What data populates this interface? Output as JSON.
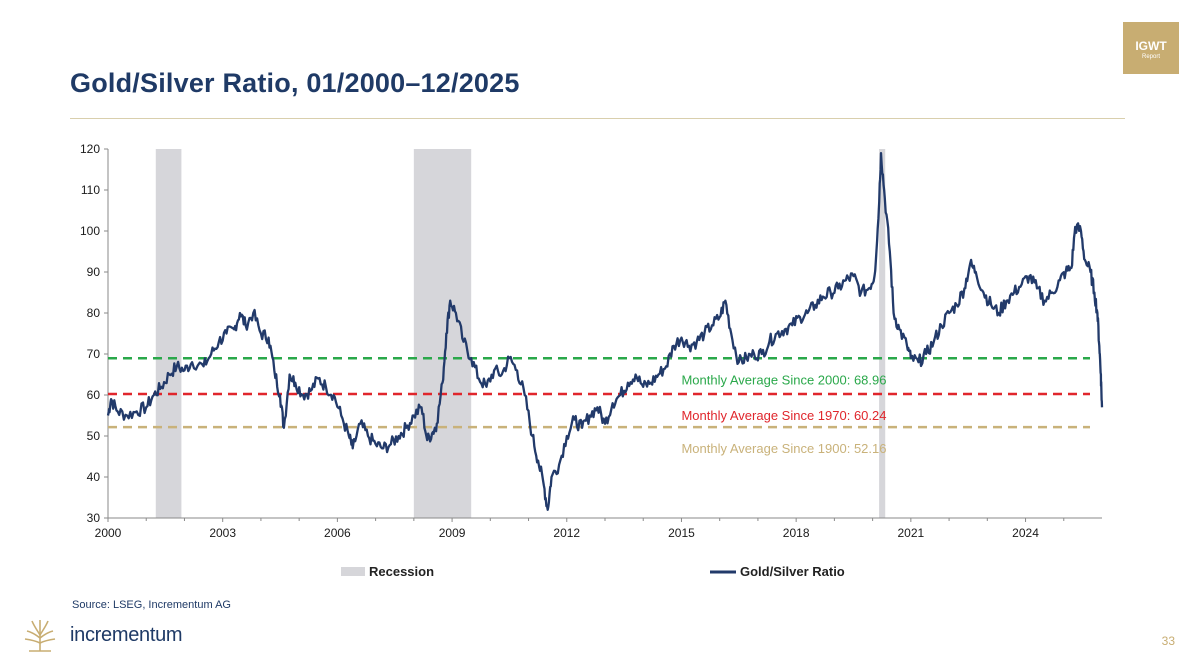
{
  "header": {
    "title": "Gold/Silver Ratio, 01/2000–12/2025",
    "badge_line1": "IGWT",
    "badge_line2": "Report",
    "accent_color": "#c8ad72",
    "title_color": "#1f3a66"
  },
  "footer": {
    "source": "Source: LSEG, Incrementum AG",
    "brand": "incrementum",
    "page_number": "33"
  },
  "chart_data": {
    "type": "line",
    "title": "Gold/Silver Ratio, 01/2000–12/2025",
    "xlabel": "",
    "ylabel": "",
    "xlim": [
      2000,
      2026
    ],
    "ylim": [
      30,
      120
    ],
    "x_ticks": [
      "2000",
      "2003",
      "2006",
      "2009",
      "2012",
      "2015",
      "2018",
      "2021",
      "2024"
    ],
    "y_ticks": [
      "30",
      "40",
      "50",
      "60",
      "70",
      "80",
      "90",
      "100",
      "110",
      "120"
    ],
    "grid": false,
    "legend_position": "bottom",
    "legend": [
      "Recession",
      "Gold/Silver Ratio"
    ],
    "series": [
      {
        "name": "Gold/Silver Ratio",
        "color": "#223a6a",
        "points": [
          [
            2000.0,
            55
          ],
          [
            2000.08,
            59
          ],
          [
            2000.25,
            56
          ],
          [
            2000.5,
            55
          ],
          [
            2000.75,
            56
          ],
          [
            2001.0,
            57
          ],
          [
            2001.2,
            60
          ],
          [
            2001.4,
            62
          ],
          [
            2001.6,
            65
          ],
          [
            2001.8,
            67
          ],
          [
            2002.0,
            66
          ],
          [
            2002.2,
            68
          ],
          [
            2002.5,
            67
          ],
          [
            2002.7,
            70
          ],
          [
            2002.9,
            73
          ],
          [
            2003.1,
            75
          ],
          [
            2003.3,
            76
          ],
          [
            2003.45,
            80
          ],
          [
            2003.6,
            77
          ],
          [
            2003.8,
            80
          ],
          [
            2004.0,
            75
          ],
          [
            2004.2,
            74
          ],
          [
            2004.35,
            66
          ],
          [
            2004.5,
            60
          ],
          [
            2004.6,
            52
          ],
          [
            2004.75,
            65
          ],
          [
            2004.9,
            63
          ],
          [
            2005.1,
            60
          ],
          [
            2005.3,
            61
          ],
          [
            2005.5,
            64
          ],
          [
            2005.7,
            62
          ],
          [
            2005.9,
            60
          ],
          [
            2006.1,
            55
          ],
          [
            2006.3,
            50
          ],
          [
            2006.4,
            47
          ],
          [
            2006.6,
            53
          ],
          [
            2006.8,
            50
          ],
          [
            2007.0,
            48
          ],
          [
            2007.2,
            47
          ],
          [
            2007.4,
            48
          ],
          [
            2007.6,
            50
          ],
          [
            2007.8,
            52
          ],
          [
            2008.0,
            55
          ],
          [
            2008.2,
            57
          ],
          [
            2008.35,
            49
          ],
          [
            2008.5,
            51
          ],
          [
            2008.6,
            53
          ],
          [
            2008.75,
            63
          ],
          [
            2008.85,
            75
          ],
          [
            2008.95,
            83
          ],
          [
            2009.1,
            80
          ],
          [
            2009.3,
            73
          ],
          [
            2009.5,
            69
          ],
          [
            2009.7,
            64
          ],
          [
            2009.9,
            62
          ],
          [
            2010.1,
            66
          ],
          [
            2010.3,
            65
          ],
          [
            2010.5,
            69
          ],
          [
            2010.7,
            66
          ],
          [
            2010.9,
            60
          ],
          [
            2011.1,
            50
          ],
          [
            2011.25,
            44
          ],
          [
            2011.4,
            38
          ],
          [
            2011.5,
            32
          ],
          [
            2011.6,
            40
          ],
          [
            2011.8,
            43
          ],
          [
            2012.0,
            50
          ],
          [
            2012.2,
            54
          ],
          [
            2012.4,
            52
          ],
          [
            2012.6,
            55
          ],
          [
            2012.8,
            57
          ],
          [
            2013.0,
            53
          ],
          [
            2013.2,
            58
          ],
          [
            2013.4,
            60
          ],
          [
            2013.6,
            63
          ],
          [
            2013.8,
            65
          ],
          [
            2014.0,
            62
          ],
          [
            2014.2,
            63
          ],
          [
            2014.4,
            65
          ],
          [
            2014.6,
            67
          ],
          [
            2014.8,
            72
          ],
          [
            2015.0,
            74
          ],
          [
            2015.2,
            72
          ],
          [
            2015.4,
            73
          ],
          [
            2015.6,
            75
          ],
          [
            2015.8,
            77
          ],
          [
            2016.0,
            79
          ],
          [
            2016.15,
            83
          ],
          [
            2016.3,
            75
          ],
          [
            2016.5,
            68
          ],
          [
            2016.7,
            69
          ],
          [
            2016.9,
            70
          ],
          [
            2017.1,
            70
          ],
          [
            2017.3,
            73
          ],
          [
            2017.5,
            75
          ],
          [
            2017.7,
            76
          ],
          [
            2017.9,
            77
          ],
          [
            2018.1,
            79
          ],
          [
            2018.3,
            80
          ],
          [
            2018.5,
            82
          ],
          [
            2018.7,
            84
          ],
          [
            2018.9,
            85
          ],
          [
            2019.1,
            86
          ],
          [
            2019.3,
            88
          ],
          [
            2019.5,
            89
          ],
          [
            2019.7,
            85
          ],
          [
            2019.9,
            86
          ],
          [
            2020.05,
            89
          ],
          [
            2020.15,
            103
          ],
          [
            2020.22,
            119
          ],
          [
            2020.32,
            108
          ],
          [
            2020.45,
            95
          ],
          [
            2020.55,
            80
          ],
          [
            2020.7,
            76
          ],
          [
            2020.9,
            72
          ],
          [
            2021.0,
            69
          ],
          [
            2021.2,
            68
          ],
          [
            2021.4,
            70
          ],
          [
            2021.6,
            73
          ],
          [
            2021.8,
            77
          ],
          [
            2022.0,
            80
          ],
          [
            2022.2,
            82
          ],
          [
            2022.4,
            86
          ],
          [
            2022.55,
            92
          ],
          [
            2022.7,
            90
          ],
          [
            2022.9,
            85
          ],
          [
            2023.1,
            82
          ],
          [
            2023.3,
            80
          ],
          [
            2023.5,
            83
          ],
          [
            2023.7,
            85
          ],
          [
            2023.9,
            87
          ],
          [
            2024.1,
            89
          ],
          [
            2024.3,
            86
          ],
          [
            2024.5,
            83
          ],
          [
            2024.7,
            85
          ],
          [
            2024.9,
            88
          ],
          [
            2025.05,
            90
          ],
          [
            2025.2,
            91
          ],
          [
            2025.3,
            101
          ],
          [
            2025.45,
            100
          ],
          [
            2025.55,
            93
          ],
          [
            2025.7,
            90
          ],
          [
            2025.8,
            85
          ],
          [
            2025.88,
            80
          ],
          [
            2025.93,
            72
          ],
          [
            2025.97,
            65
          ],
          [
            2026.0,
            57
          ]
        ]
      }
    ],
    "recessions": [
      [
        2001.25,
        2001.92
      ],
      [
        2008.0,
        2009.5
      ],
      [
        2020.17,
        2020.33
      ]
    ],
    "recession_color": "#d6d6da",
    "reference_lines": [
      {
        "label": "Monthly Average Since 2000: 68.96",
        "value": 68.96,
        "color": "#2aa84a"
      },
      {
        "label": "Monthly Average Since 1970: 60.24",
        "value": 60.24,
        "color": "#e0262c"
      },
      {
        "label": "Monthly Average Since 1900: 52.16",
        "value": 52.16,
        "color": "#c9b27a"
      }
    ]
  }
}
